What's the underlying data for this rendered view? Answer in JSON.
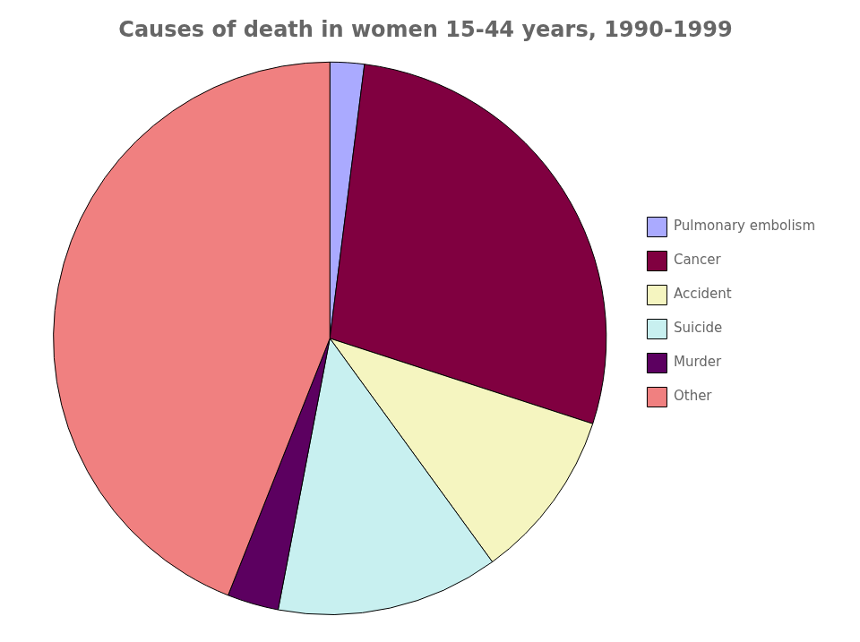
{
  "chart_data": {
    "type": "pie",
    "title": "Causes of death in women 15-44 years, 1990-1999",
    "categories": [
      "Pulmonary embolism",
      "Cancer",
      "Accident",
      "Suicide",
      "Murder",
      "Other"
    ],
    "values": [
      2,
      28,
      10,
      13,
      3,
      44
    ],
    "colors": [
      "#aaaaff",
      "#800040",
      "#f5f5c0",
      "#c8f0f0",
      "#5c0060",
      "#f08080"
    ],
    "legend": "right"
  }
}
